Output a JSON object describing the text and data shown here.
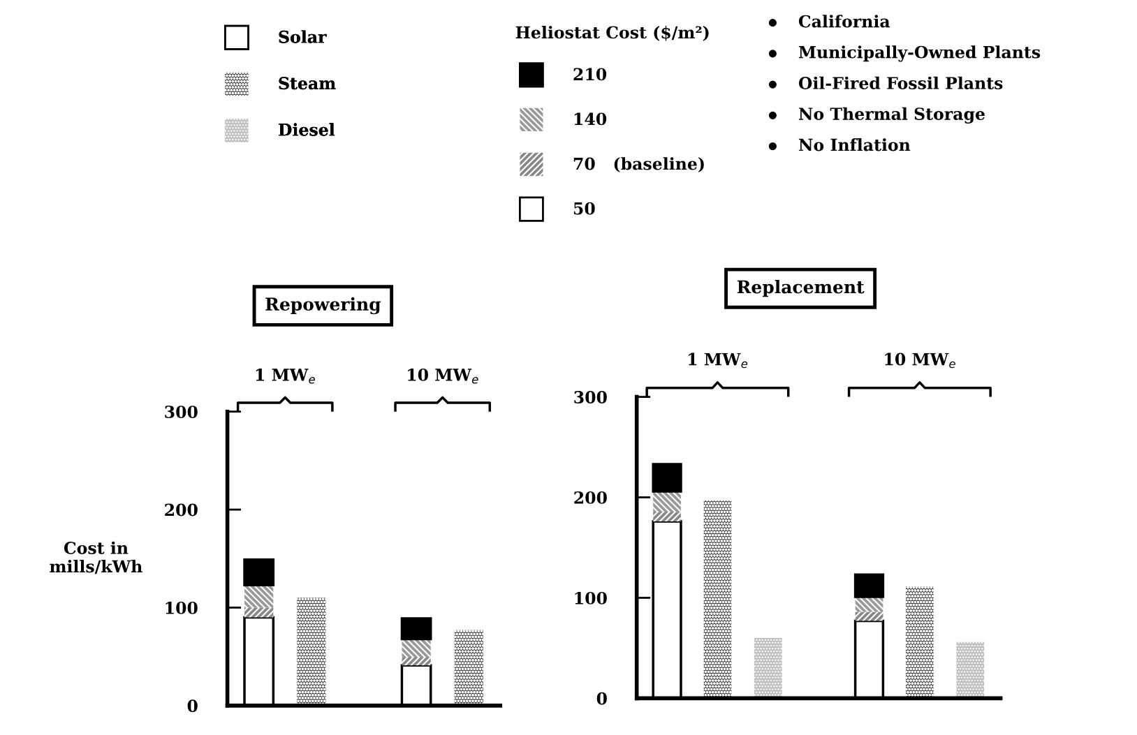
{
  "chart_data": [
    {
      "type": "other",
      "annotations": [
        "California",
        "Municipally-Owned Plants",
        "Oil-Fired Fossil Plants",
        "No Thermal Storage",
        "No Inflation"
      ]
    },
    {
      "type": "bar",
      "title": "Repowering",
      "ylabel": "Cost in\nmills/kWh",
      "stacked": true,
      "legend": "top",
      "legend_title": "Heliostat Cost ($/m²)",
      "categories": [
        null,
        null,
        null,
        null,
        null
      ],
      "annotations": [
        "1 MW$_{e}$",
        "10 MW$_{e}$"
      ],
      "ylim": [
        0,
        300
      ],
      "yticks": [
        0,
        100,
        200,
        300
      ],
      "grid": false,
      "series": [
        {
          "name": "Solar",
          "color": "#ffffff",
          "values": [
            null,
            null,
            null,
            null,
            null
          ]
        },
        {
          "name": "Steam",
          "color": "#333333",
          "values": [
            null,
            110,
            null,
            null,
            77
          ]
        },
        {
          "name": "Diesel",
          "color": "#bbbbbb",
          "values": [
            null,
            null,
            null,
            null,
            null
          ]
        },
        {
          "name": "50",
          "color": "#ffffff",
          "values": [
            90,
            null,
            null,
            41,
            null
          ]
        },
        {
          "name": "70   (baseline)",
          "color": "#888888",
          "values": [
            10,
            null,
            null,
            8,
            null
          ]
        },
        {
          "name": "140",
          "color": "#999999",
          "values": [
            23,
            null,
            null,
            19,
            null
          ]
        },
        {
          "name": "210",
          "color": "#000000",
          "values": [
            26,
            null,
            null,
            21,
            null
          ]
        }
      ]
    },
    {
      "type": "bar",
      "title": "Replacement",
      "stacked": true,
      "legend": false,
      "categories": [
        null,
        null,
        null,
        null,
        null,
        null,
        null
      ],
      "annotations": [
        "1 MW$_{e}$",
        "10 MW$_{e}$"
      ],
      "ylim": [
        0,
        300
      ],
      "yticks": [
        0,
        100,
        200,
        300
      ],
      "grid": false,
      "series": [
        {
          "color": "#333333",
          "values": [
            null,
            197,
            null,
            null,
            null,
            111,
            null
          ]
        },
        {
          "color": "#bbbbbb",
          "values": [
            null,
            null,
            60,
            null,
            null,
            null,
            56
          ]
        },
        {
          "color": "#ffffff",
          "values": [
            176,
            null,
            null,
            null,
            77,
            null,
            null
          ]
        },
        {
          "color": "#888888",
          "values": [
            9,
            null,
            null,
            null,
            9,
            null,
            null
          ]
        },
        {
          "color": "#999999",
          "values": [
            21,
            null,
            null,
            null,
            15,
            null,
            null
          ]
        },
        {
          "color": "#000000",
          "values": [
            27,
            null,
            null,
            null,
            22,
            null,
            null
          ]
        }
      ]
    }
  ]
}
